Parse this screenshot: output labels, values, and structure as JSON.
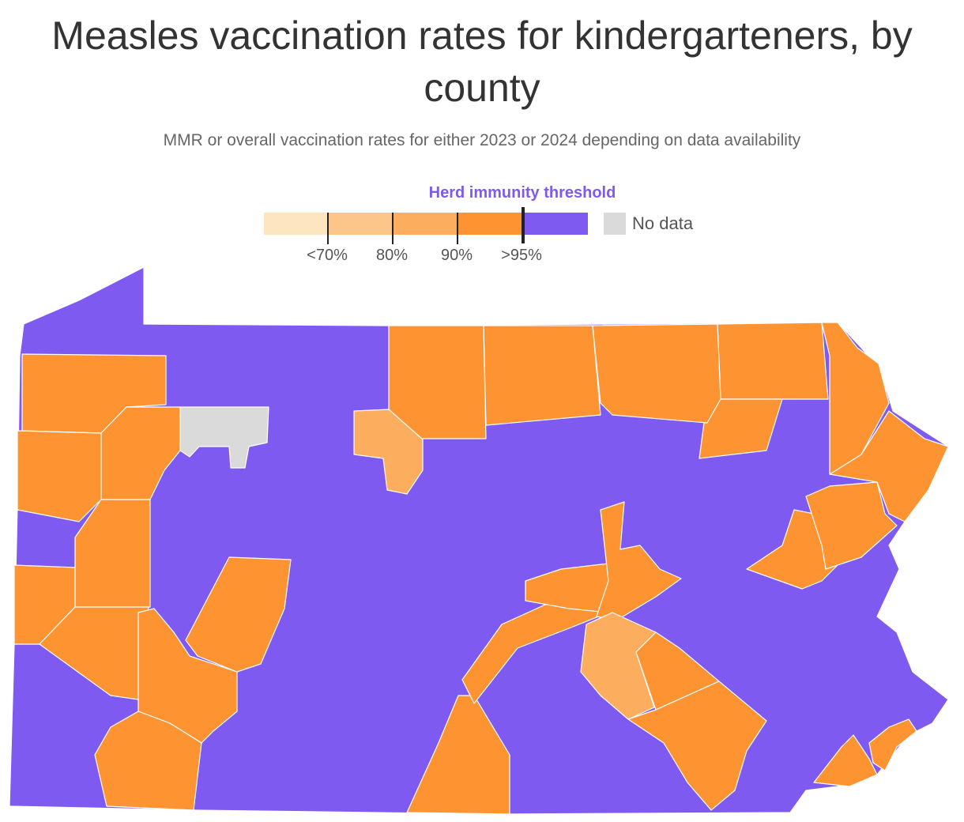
{
  "title": "Measles vaccination rates for kindergarteners, by county",
  "subtitle": "MMR or overall vaccination rates for either 2023 or 2024 depending on data availability",
  "legend": {
    "threshold_label": "Herd immunity threshold",
    "bins": [
      {
        "label": "<70%",
        "color": "#fde6bf"
      },
      {
        "label": "80%",
        "color": "#fcc68a"
      },
      {
        "label": "90%",
        "color": "#fdad5e"
      },
      {
        "label": ">95%",
        "color": "#fd9331"
      },
      {
        "label": "",
        "color": "#7f5af0"
      }
    ],
    "no_data_label": "No data",
    "no_data_color": "#dadada"
  },
  "colors": {
    "above_threshold": "#7f5af0",
    "band_90_95": "#fd9331",
    "band_80_90": "#fdad5e",
    "no_data": "#dadada"
  }
}
